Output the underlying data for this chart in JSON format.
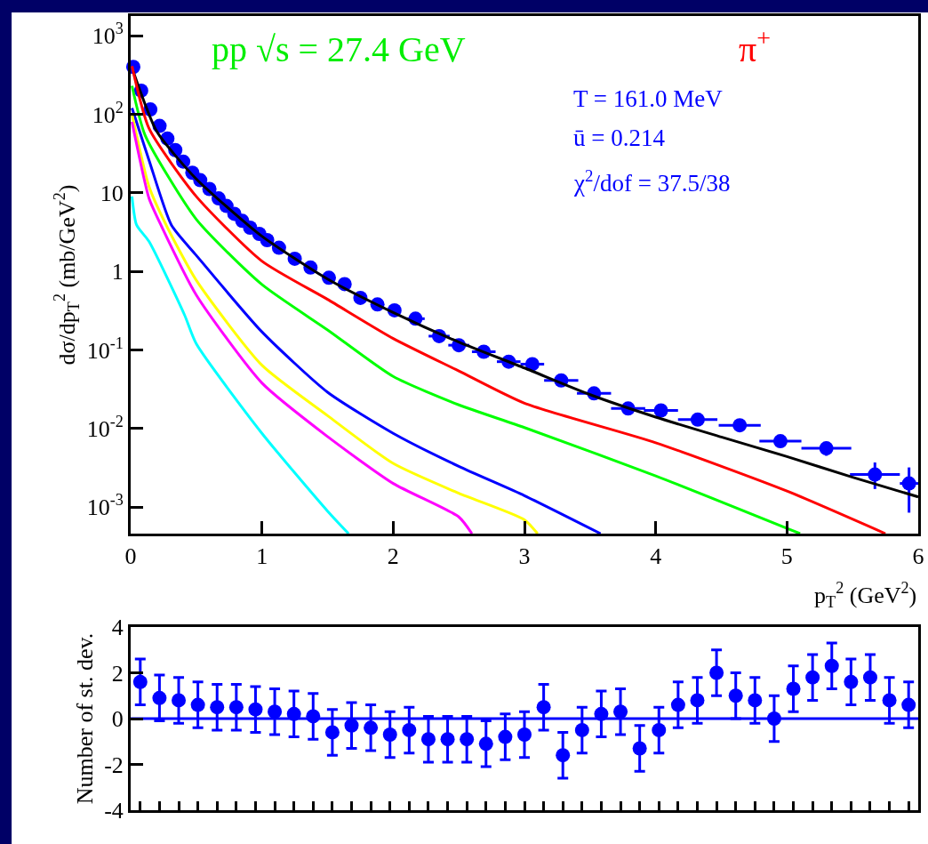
{
  "chart_data": [
    {
      "type": "line",
      "xlabel": "p$_{T}$$^{2}$ (GeV$^{2}$)",
      "ylabel": "dσ/dp$_{T}$$^{2}$ (mb/GeV$^{2}$)",
      "annotations": [
        "pp √s = 27.4 GeV",
        "π$^{+}$",
        "T = 161.0 MeV",
        "ū = 0.214",
        "χ$^{2}$/dof = 37.5/38"
      ],
      "log": "y",
      "xlim": [
        0,
        6
      ],
      "xticks": [
        0,
        1,
        2,
        3,
        4,
        5,
        6
      ],
      "ylim": [
        0.00046,
        1780
      ],
      "yticks": [
        {
          "value": 0.001,
          "label": "10$^{-3}$"
        },
        {
          "value": 0.01,
          "label": "10$^{-2}$"
        },
        {
          "value": 0.1,
          "label": "10$^{-1}$"
        },
        1,
        10,
        {
          "value": 100,
          "label": "10$^{2}$"
        },
        {
          "value": 1000,
          "label": "10$^{3}$"
        }
      ],
      "grid": false,
      "series": [
        {
          "type": "scatter",
          "marker": "circle",
          "color": "#0000ff",
          "x": [
            0.02,
            0.08,
            0.15,
            0.22,
            0.28,
            0.34,
            0.4,
            0.47,
            0.53,
            0.6,
            0.67,
            0.73,
            0.79,
            0.85,
            0.91,
            0.98,
            1.04,
            1.13,
            1.25,
            1.37,
            1.51,
            1.63,
            1.75,
            1.88,
            2.01,
            2.17,
            2.35,
            2.5,
            2.69,
            2.88,
            3.06,
            3.28,
            3.53,
            3.79,
            4.04,
            4.32,
            4.64,
            4.95,
            5.3,
            5.67,
            5.93
          ],
          "values": [
            400,
            200,
            115,
            71,
            49,
            35,
            25,
            18,
            14.5,
            11.2,
            8.5,
            6.8,
            5.4,
            4.4,
            3.6,
            3.0,
            2.5,
            2.0,
            1.45,
            1.12,
            0.83,
            0.69,
            0.46,
            0.38,
            0.32,
            0.25,
            0.15,
            0.115,
            0.095,
            0.071,
            0.066,
            0.041,
            0.028,
            0.018,
            0.017,
            0.013,
            0.011,
            0.0069,
            0.0056,
            0.0026,
            0.002
          ],
          "xerrors": [
            null,
            null,
            null,
            null,
            null,
            null,
            null,
            null,
            null,
            null,
            null,
            null,
            null,
            null,
            null,
            null,
            null,
            null,
            null,
            null,
            null,
            null,
            null,
            null,
            null,
            0.07,
            0.08,
            0.08,
            0.09,
            0.09,
            0.09,
            0.13,
            0.13,
            0.13,
            0.13,
            0.15,
            0.16,
            0.16,
            0.19,
            0.19,
            0.07
          ],
          "errors": [
            null,
            null,
            null,
            null,
            null,
            null,
            null,
            null,
            null,
            null,
            null,
            null,
            null,
            null,
            null,
            null,
            null,
            null,
            null,
            null,
            null,
            null,
            null,
            null,
            null,
            null,
            null,
            null,
            null,
            null,
            null,
            null,
            null,
            null,
            null,
            null,
            null,
            null,
            [
              0.0045,
              0.0068
            ],
            [
              0.0017,
              0.0037
            ],
            [
              0.00085,
              0.0032
            ]
          ]
        },
        {
          "type": "line",
          "color": "#000000",
          "x": [
            0.02,
            0.2,
            0.5,
            1.0,
            1.5,
            2.0,
            2.5,
            3.0,
            3.5,
            4.0,
            4.5,
            5.0,
            5.5,
            6.0
          ],
          "values": [
            350,
            60,
            15,
            2.8,
            0.8,
            0.3,
            0.126,
            0.059,
            0.027,
            0.014,
            0.0078,
            0.0044,
            0.0024,
            0.00135
          ]
        },
        {
          "type": "line",
          "color": "#ff0000",
          "x": [
            0.01,
            0.14,
            0.5,
            1.0,
            1.5,
            2.0,
            2.5,
            3.0,
            4.0,
            5.0,
            5.75
          ],
          "values": [
            410,
            66,
            9,
            1.35,
            0.44,
            0.14,
            0.054,
            0.021,
            0.0066,
            0.0016,
            0.00046
          ]
        },
        {
          "type": "line",
          "color": "#00ff00",
          "x": [
            0.01,
            0.11,
            0.5,
            1.0,
            1.5,
            2.0,
            2.5,
            3.0,
            4.0,
            5.1
          ],
          "values": [
            230,
            54,
            4.6,
            0.68,
            0.18,
            0.046,
            0.02,
            0.0103,
            0.0025,
            0.00046
          ]
        },
        {
          "type": "line",
          "color": "#0000ff",
          "x": [
            0.01,
            0.14,
            0.31,
            0.5,
            1.0,
            1.5,
            2.0,
            2.5,
            3.0,
            3.58
          ],
          "values": [
            120,
            26,
            3.9,
            1.6,
            0.17,
            0.029,
            0.0087,
            0.0033,
            0.0014,
            0.00046
          ]
        },
        {
          "type": "line",
          "color": "#ffff00",
          "x": [
            0.01,
            0.14,
            0.27,
            0.5,
            1.0,
            1.5,
            2.0,
            2.5,
            3.0,
            3.1
          ],
          "values": [
            100,
            12,
            3.9,
            0.77,
            0.064,
            0.0146,
            0.0036,
            0.0015,
            0.00069,
            0.00046
          ]
        },
        {
          "type": "line",
          "color": "#ff00ff",
          "x": [
            0.01,
            0.14,
            0.23,
            0.5,
            1.0,
            1.5,
            2.0,
            2.5,
            2.6
          ],
          "values": [
            80,
            8.5,
            3.9,
            0.5,
            0.038,
            0.0079,
            0.002,
            0.00075,
            0.00046
          ]
        },
        {
          "type": "line",
          "color": "#00ffff",
          "x": [
            0.01,
            0.045,
            0.14,
            0.41,
            0.5,
            1.0,
            1.5,
            1.66
          ],
          "values": [
            9,
            3.9,
            2.4,
            0.28,
            0.12,
            0.0087,
            0.00089,
            0.00046
          ]
        }
      ]
    },
    {
      "type": "scatter",
      "ylabel": "Number of st. dev.",
      "marker": "circle",
      "grid": false,
      "tick_labels": "y",
      "categories": [
        null,
        null,
        null,
        null,
        null,
        null,
        null,
        null,
        null,
        null,
        null,
        null,
        null,
        null,
        null,
        null,
        null,
        null,
        null,
        null,
        null,
        null,
        null,
        null,
        null,
        null,
        null,
        null,
        null,
        null,
        null,
        null,
        null,
        null,
        null,
        null,
        null,
        null,
        null,
        null,
        null
      ],
      "ylim": [
        -4,
        4
      ],
      "yticks": [
        -4,
        -2,
        0,
        2,
        4
      ],
      "ref_lines": [
        {
          "axis": "y",
          "value": 0,
          "color": "#0000ff"
        }
      ],
      "series": [
        {
          "color": "#0000ff",
          "values": [
            1.6,
            0.9,
            0.8,
            0.6,
            0.5,
            0.5,
            0.4,
            0.3,
            0.2,
            0.1,
            -0.6,
            -0.3,
            -0.4,
            -0.7,
            -0.5,
            -0.9,
            -0.9,
            -0.9,
            -1.1,
            -0.8,
            -0.7,
            0.5,
            -1.6,
            -0.5,
            0.2,
            0.3,
            -1.3,
            -0.5,
            0.6,
            0.8,
            2.0,
            1.0,
            0.8,
            0.0,
            1.3,
            1.8,
            2.3,
            1.6,
            1.8,
            0.8,
            0.6
          ],
          "errors": [
            1,
            1,
            1,
            1,
            1,
            1,
            1,
            1,
            1,
            1,
            1,
            1,
            1,
            1,
            1,
            1,
            1,
            1,
            1,
            1,
            1,
            1,
            1,
            1,
            1,
            1,
            1,
            1,
            1,
            1,
            1,
            1,
            1,
            1,
            1,
            1,
            1,
            1,
            1,
            1,
            1
          ]
        }
      ]
    }
  ]
}
